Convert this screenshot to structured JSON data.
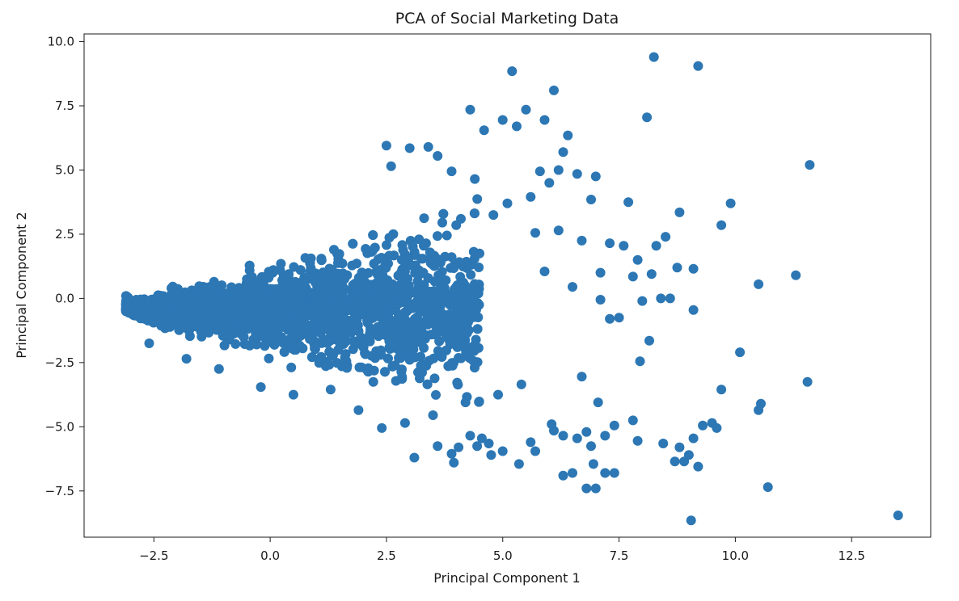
{
  "chart_data": {
    "type": "scatter",
    "title": "PCA of Social Marketing Data",
    "xlabel": "Principal Component 1",
    "ylabel": "Principal Component 2",
    "xlim": [
      -4.0,
      14.2
    ],
    "ylim": [
      -9.3,
      10.3
    ],
    "grid": false,
    "legend": "none",
    "x_ticks": [
      -2.5,
      0.0,
      2.5,
      5.0,
      7.5,
      10.0,
      12.5
    ],
    "x_tick_labels": [
      "−2.5",
      "0.0",
      "2.5",
      "5.0",
      "7.5",
      "10.0",
      "12.5"
    ],
    "y_ticks": [
      -7.5,
      -5.0,
      -2.5,
      0.0,
      2.5,
      5.0,
      7.5,
      10.0
    ],
    "y_tick_labels": [
      "−7.5",
      "−5.0",
      "−2.5",
      "0.0",
      "2.5",
      "5.0",
      "7.5",
      "10.0"
    ],
    "marker_color": "#2c77b4",
    "series": [
      {
        "x": [
          8.25,
          9.2,
          5.2,
          6.1,
          8.1,
          11.6,
          4.3,
          5.5,
          5.0,
          5.9,
          6.4,
          3.4,
          2.5,
          3.0,
          3.6,
          4.6,
          5.3,
          6.3,
          7.0,
          7.7,
          9.9,
          9.7,
          8.8,
          8.5,
          8.3,
          7.9,
          8.75,
          9.1,
          10.5,
          11.3,
          7.1,
          7.3,
          8.0,
          8.4,
          8.6,
          7.8,
          8.2,
          9.1,
          10.1,
          9.7,
          11.55,
          10.55,
          10.5,
          9.5,
          9.6,
          9.3,
          9.1,
          9.2,
          9.0,
          8.9,
          8.7,
          7.2,
          7.4,
          6.95,
          6.5,
          6.3,
          6.8,
          7.0,
          10.7,
          13.5,
          9.05,
          3.9,
          4.4,
          5.8,
          2.6,
          6.2,
          6.6,
          6.0,
          5.6,
          5.1,
          4.8,
          4.1,
          3.7,
          3.2,
          2.2,
          1.1,
          0.4,
          -0.5,
          6.7,
          7.3,
          7.6,
          6.9,
          6.2,
          5.7,
          4.0,
          3.8,
          3.3,
          4.5,
          5.9,
          6.5,
          7.1,
          7.5,
          8.15,
          7.95,
          6.7,
          5.4,
          4.9,
          4.2,
          3.5,
          2.9,
          2.4,
          1.9,
          -1.8,
          -2.6,
          0.5,
          1.3,
          -0.2,
          -1.1,
          7.8,
          7.4,
          7.2,
          6.1,
          6.6,
          5.7,
          5.35,
          4.75,
          4.45,
          3.95,
          3.1,
          5.6,
          6.3,
          6.9,
          7.9,
          8.8,
          8.45,
          4.7,
          4.3,
          5.0,
          4.55,
          3.6,
          3.9,
          4.05,
          6.05,
          6.8,
          7.05
        ],
        "y": [
          9.4,
          9.05,
          8.85,
          8.1,
          7.05,
          5.2,
          7.35,
          7.35,
          6.95,
          6.95,
          6.35,
          5.9,
          5.95,
          5.85,
          5.55,
          6.55,
          6.7,
          5.7,
          4.75,
          3.75,
          3.7,
          2.85,
          3.35,
          2.4,
          2.05,
          1.5,
          1.2,
          1.15,
          0.55,
          0.9,
          1.0,
          -0.8,
          -0.1,
          0.0,
          0.0,
          0.85,
          0.95,
          -0.45,
          -2.1,
          -3.55,
          -3.25,
          -4.1,
          -4.35,
          -4.85,
          -5.05,
          -4.95,
          -5.45,
          -6.55,
          -6.1,
          -6.35,
          -6.35,
          -6.8,
          -6.8,
          -6.45,
          -6.8,
          -6.9,
          -7.4,
          -7.4,
          -7.35,
          -8.45,
          -8.65,
          4.95,
          4.65,
          4.95,
          5.15,
          5.0,
          4.85,
          4.5,
          3.95,
          3.7,
          3.25,
          3.1,
          2.95,
          2.3,
          1.85,
          1.55,
          0.95,
          0.75,
          2.25,
          2.15,
          2.05,
          3.85,
          2.65,
          2.55,
          2.85,
          2.45,
          2.05,
          1.75,
          1.05,
          0.45,
          -0.05,
          -0.75,
          -1.65,
          -2.45,
          -3.05,
          -3.35,
          -3.75,
          -4.05,
          -4.55,
          -4.85,
          -5.05,
          -4.35,
          -2.35,
          -1.75,
          -3.75,
          -3.55,
          -3.45,
          -2.75,
          -4.75,
          -4.95,
          -5.35,
          -5.15,
          -5.45,
          -5.95,
          -6.45,
          -6.1,
          -5.75,
          -6.4,
          -6.2,
          -5.6,
          -5.35,
          -5.75,
          -5.55,
          -5.8,
          -5.65,
          -5.65,
          -5.35,
          -5.95,
          -5.45,
          -5.75,
          -6.05,
          -5.8,
          -4.9,
          -5.2,
          -4.05
        ]
      }
    ],
    "dense_cluster_description_free": true
  }
}
